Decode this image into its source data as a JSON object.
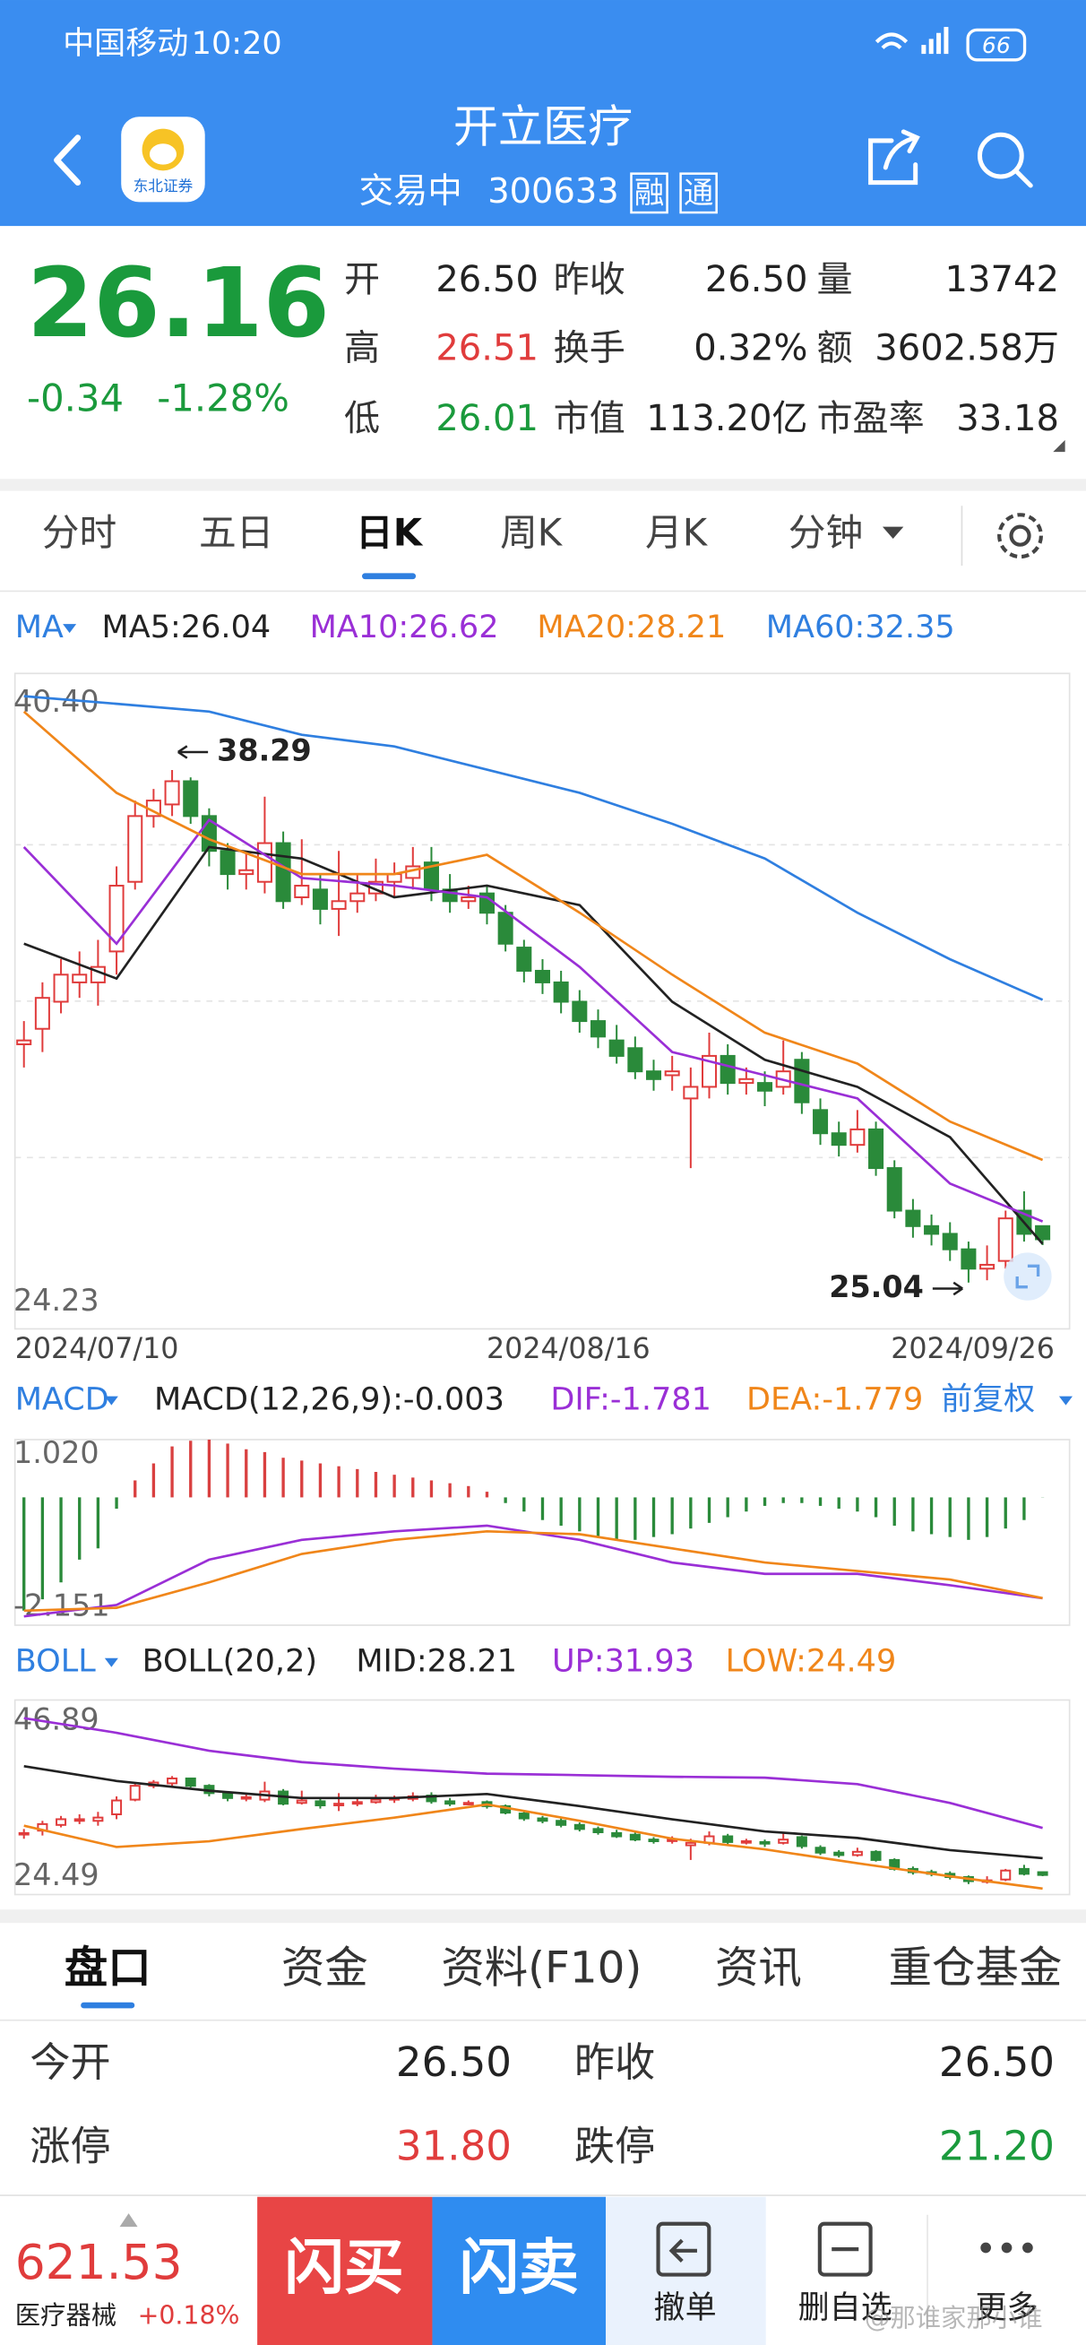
{
  "status_bar": {
    "carrier": "中国移动",
    "time": "10:20",
    "battery": "66"
  },
  "header": {
    "title": "开立医疗",
    "status": "交易中",
    "code": "300633",
    "tags": [
      "融",
      "通"
    ],
    "logo_text": "东北证券"
  },
  "quote": {
    "price": "26.16",
    "change": "-0.34",
    "change_pct": "-1.28%",
    "fields": [
      {
        "label": "开",
        "value": "26.50"
      },
      {
        "label": "昨收",
        "value": "26.50"
      },
      {
        "label": "量",
        "value": "13742"
      },
      {
        "label": "高",
        "value": "26.51",
        "color": "#e03c3c"
      },
      {
        "label": "换手",
        "value": "0.32%"
      },
      {
        "label": "额",
        "value": "3602.58万"
      },
      {
        "label": "低",
        "value": "26.01",
        "color": "#1a9a3c"
      },
      {
        "label": "市值",
        "value": "113.20亿"
      },
      {
        "label": "市盈率",
        "value": "33.18"
      }
    ]
  },
  "chart_tabs": {
    "items": [
      "分时",
      "五日",
      "日K",
      "周K",
      "月K",
      "分钟"
    ],
    "active": "日K"
  },
  "chart_data": [
    {
      "type": "candlestick",
      "indicator": "MA",
      "ylim": [
        24.23,
        40.4
      ],
      "yticks": [
        {
          "value": 40.4,
          "label": "40.40"
        },
        24.23
      ],
      "date_labels": [
        "2024/07/10",
        "2024/08/16",
        "2024/09/26"
      ],
      "max_high": 38.29,
      "min_low": 25.04,
      "up_color": "#e03c3c",
      "down_color": "#2a8a3a",
      "grid": true,
      "candles": [
        {
          "open": 31.2,
          "close": 31.3,
          "high": 31.8,
          "low": 30.6
        },
        {
          "open": 31.6,
          "close": 32.4,
          "high": 32.8,
          "low": 31.0
        },
        {
          "open": 32.3,
          "close": 33.0,
          "high": 33.4,
          "low": 32.0
        },
        {
          "open": 32.8,
          "close": 33.0,
          "high": 33.6,
          "low": 32.4
        },
        {
          "open": 32.8,
          "close": 33.2,
          "high": 33.9,
          "low": 32.2
        },
        {
          "open": 33.6,
          "close": 35.3,
          "high": 35.8,
          "low": 33.0
        },
        {
          "open": 35.4,
          "close": 37.1,
          "high": 37.5,
          "low": 35.2
        },
        {
          "open": 37.1,
          "close": 37.5,
          "high": 37.8,
          "low": 36.8
        },
        {
          "open": 37.4,
          "close": 38.0,
          "high": 38.29,
          "low": 37.1
        },
        {
          "open": 38.0,
          "close": 37.1,
          "high": 38.1,
          "low": 36.9
        },
        {
          "open": 37.1,
          "close": 36.2,
          "high": 37.3,
          "low": 35.8
        },
        {
          "open": 36.2,
          "close": 35.6,
          "high": 36.4,
          "low": 35.2
        },
        {
          "open": 35.6,
          "close": 35.7,
          "high": 36.2,
          "low": 35.2
        },
        {
          "open": 35.4,
          "close": 36.4,
          "high": 37.6,
          "low": 35.1
        },
        {
          "open": 36.4,
          "close": 34.9,
          "high": 36.7,
          "low": 34.7
        },
        {
          "open": 35.0,
          "close": 35.3,
          "high": 36.5,
          "low": 34.8
        },
        {
          "open": 35.2,
          "close": 34.7,
          "high": 35.6,
          "low": 34.3
        },
        {
          "open": 34.7,
          "close": 34.9,
          "high": 36.2,
          "low": 34.0
        },
        {
          "open": 34.9,
          "close": 35.1,
          "high": 35.6,
          "low": 34.6
        },
        {
          "open": 35.1,
          "close": 35.4,
          "high": 36.0,
          "low": 34.9
        },
        {
          "open": 35.4,
          "close": 35.6,
          "high": 35.9,
          "low": 35.0
        },
        {
          "open": 35.5,
          "close": 35.8,
          "high": 36.3,
          "low": 35.2
        },
        {
          "open": 35.9,
          "close": 35.2,
          "high": 36.3,
          "low": 34.9
        },
        {
          "open": 35.2,
          "close": 34.9,
          "high": 35.6,
          "low": 34.6
        },
        {
          "open": 34.9,
          "close": 35.0,
          "high": 35.3,
          "low": 34.7
        },
        {
          "open": 35.1,
          "close": 34.6,
          "high": 35.3,
          "low": 34.3
        },
        {
          "open": 34.6,
          "close": 33.8,
          "high": 34.8,
          "low": 33.6
        },
        {
          "open": 33.7,
          "close": 33.1,
          "high": 33.9,
          "low": 32.8
        },
        {
          "open": 33.1,
          "close": 32.8,
          "high": 33.4,
          "low": 32.5
        },
        {
          "open": 32.8,
          "close": 32.3,
          "high": 33.1,
          "low": 32.0
        },
        {
          "open": 32.3,
          "close": 31.8,
          "high": 32.6,
          "low": 31.5
        },
        {
          "open": 31.8,
          "close": 31.4,
          "high": 32.1,
          "low": 31.1
        },
        {
          "open": 31.3,
          "close": 30.9,
          "high": 31.7,
          "low": 30.7
        },
        {
          "open": 31.1,
          "close": 30.5,
          "high": 31.4,
          "low": 30.3
        },
        {
          "open": 30.5,
          "close": 30.3,
          "high": 30.8,
          "low": 30.0
        },
        {
          "open": 30.4,
          "close": 30.5,
          "high": 30.9,
          "low": 30.0
        },
        {
          "open": 29.8,
          "close": 30.1,
          "high": 30.6,
          "low": 28.0
        },
        {
          "open": 30.1,
          "close": 30.9,
          "high": 31.5,
          "low": 29.8
        },
        {
          "open": 30.9,
          "close": 30.2,
          "high": 31.2,
          "low": 29.9
        },
        {
          "open": 30.2,
          "close": 30.3,
          "high": 30.6,
          "low": 29.9
        },
        {
          "open": 30.2,
          "close": 30.0,
          "high": 30.5,
          "low": 29.6
        },
        {
          "open": 30.1,
          "close": 30.5,
          "high": 31.3,
          "low": 29.9
        },
        {
          "open": 30.8,
          "close": 29.7,
          "high": 31.0,
          "low": 29.4
        },
        {
          "open": 29.5,
          "close": 28.9,
          "high": 29.8,
          "low": 28.6
        },
        {
          "open": 28.9,
          "close": 28.6,
          "high": 29.2,
          "low": 28.3
        },
        {
          "open": 28.6,
          "close": 29.0,
          "high": 29.5,
          "low": 28.4
        },
        {
          "open": 29.0,
          "close": 28.0,
          "high": 29.2,
          "low": 27.8
        },
        {
          "open": 28.0,
          "close": 26.9,
          "high": 28.2,
          "low": 26.7
        },
        {
          "open": 26.9,
          "close": 26.5,
          "high": 27.2,
          "low": 26.2
        },
        {
          "open": 26.5,
          "close": 26.3,
          "high": 26.8,
          "low": 26.0
        },
        {
          "open": 26.3,
          "close": 25.9,
          "high": 26.6,
          "low": 25.6
        },
        {
          "open": 25.9,
          "close": 25.4,
          "high": 26.1,
          "low": 25.04
        },
        {
          "open": 25.4,
          "close": 25.5,
          "high": 26.0,
          "low": 25.1
        },
        {
          "open": 25.6,
          "close": 26.7,
          "high": 26.9,
          "low": 25.4
        },
        {
          "open": 26.9,
          "close": 26.3,
          "high": 27.4,
          "low": 26.1
        },
        {
          "open": 26.5,
          "close": 26.16,
          "high": 26.51,
          "low": 26.01
        }
      ],
      "series": [
        {
          "label": "MA5:26.04",
          "color": "#222222",
          "values": [
            33.8,
            32.9,
            36.3,
            36.0,
            35.0,
            35.3,
            34.8,
            32.3,
            30.8,
            30.1,
            28.8,
            26.04
          ]
        },
        {
          "label": "MA10:26.62",
          "color": "#9a2fd6",
          "values": [
            36.3,
            33.8,
            37.0,
            35.5,
            35.3,
            35.0,
            33.2,
            31.0,
            30.4,
            29.8,
            27.6,
            26.62
          ]
        },
        {
          "label": "MA20:28.21",
          "color": "#f0861a",
          "values": [
            39.8,
            37.7,
            36.5,
            35.6,
            35.6,
            36.1,
            34.6,
            33.0,
            31.5,
            30.7,
            29.2,
            28.21
          ]
        },
        {
          "label": "MA60:32.35",
          "color": "#2f7fe0",
          "values": [
            40.2,
            40.0,
            39.8,
            39.2,
            38.9,
            38.3,
            37.7,
            36.9,
            36.0,
            34.6,
            33.4,
            32.35
          ]
        }
      ]
    },
    {
      "type": "macd",
      "indicator": "MACD",
      "params_label": "MACD(12,26,9):-0.003",
      "adjust": "前复权",
      "ylim": [
        -2.151,
        1.02
      ],
      "yticks": [
        {
          "value": 1.02,
          "label": "1.020"
        },
        -2.151
      ],
      "up_color": "#d94040",
      "down_color": "#2a8a3a",
      "histogram": [
        -2.0,
        -1.8,
        -1.5,
        -1.1,
        -0.9,
        -0.2,
        0.3,
        0.6,
        0.9,
        1.0,
        1.02,
        0.95,
        0.85,
        0.8,
        0.7,
        0.65,
        0.6,
        0.55,
        0.5,
        0.45,
        0.4,
        0.35,
        0.3,
        0.25,
        0.2,
        0.1,
        -0.1,
        -0.25,
        -0.4,
        -0.5,
        -0.6,
        -0.7,
        -0.75,
        -0.75,
        -0.7,
        -0.65,
        -0.55,
        -0.45,
        -0.35,
        -0.25,
        -0.15,
        -0.1,
        -0.1,
        -0.15,
        -0.2,
        -0.25,
        -0.35,
        -0.5,
        -0.6,
        -0.65,
        -0.7,
        -0.75,
        -0.7,
        -0.55,
        -0.4,
        -0.003
      ],
      "series": [
        {
          "label": "DIF:-1.781",
          "color": "#9a2fd6",
          "values": [
            -2.1,
            -1.9,
            -1.1,
            -0.75,
            -0.6,
            -0.5,
            -0.75,
            -1.15,
            -1.35,
            -1.35,
            -1.55,
            -1.781
          ]
        },
        {
          "label": "DEA:-1.779",
          "color": "#f0861a",
          "values": [
            -2.0,
            -1.95,
            -1.5,
            -1.0,
            -0.75,
            -0.6,
            -0.65,
            -0.9,
            -1.15,
            -1.3,
            -1.45,
            -1.779
          ]
        }
      ]
    },
    {
      "type": "boll",
      "indicator": "BOLL",
      "params_label": "BOLL(20,2)",
      "ylim": [
        24.49,
        46.89
      ],
      "yticks": [
        46.89,
        24.49
      ],
      "series": [
        {
          "label": "MID:28.21",
          "color": "#222222",
          "values": [
            39.5,
            37.7,
            36.5,
            35.6,
            35.6,
            36.1,
            34.6,
            33.0,
            31.5,
            30.7,
            29.2,
            28.21
          ]
        },
        {
          "label": "UP:31.93",
          "color": "#9a2fd6",
          "values": [
            45.4,
            43.6,
            41.4,
            40.0,
            39.2,
            38.6,
            38.4,
            38.2,
            38.1,
            37.3,
            35.0,
            31.93
          ]
        },
        {
          "label": "LOW:24.49",
          "color": "#f0861a",
          "values": [
            32.2,
            29.6,
            30.3,
            31.8,
            33.2,
            34.8,
            32.8,
            30.6,
            29.3,
            27.6,
            26.0,
            24.49
          ]
        }
      ]
    }
  ],
  "detail_tabs": {
    "items": [
      "盘口",
      "资金",
      "资料(F10)",
      "资讯",
      "重仓基金"
    ],
    "active": "盘口"
  },
  "table": {
    "rows": [
      [
        {
          "text": "今开"
        },
        {
          "text": "26.50"
        },
        {
          "text": "昨收"
        },
        {
          "text": "26.50"
        }
      ],
      [
        {
          "text": "涨停"
        },
        {
          "text": "31.80",
          "color": "#e03c3c"
        },
        {
          "text": "跌停"
        },
        {
          "text": "21.20",
          "color": "#1a9a3c"
        }
      ]
    ]
  },
  "bottom_bar": {
    "index_value": "621.53",
    "index_name": "医疗器械",
    "index_change": "+0.18%",
    "buttons": [
      "闪买",
      "闪卖",
      "撤单",
      "删自选",
      "更多"
    ],
    "watermark": "@那谁家那小谁"
  }
}
